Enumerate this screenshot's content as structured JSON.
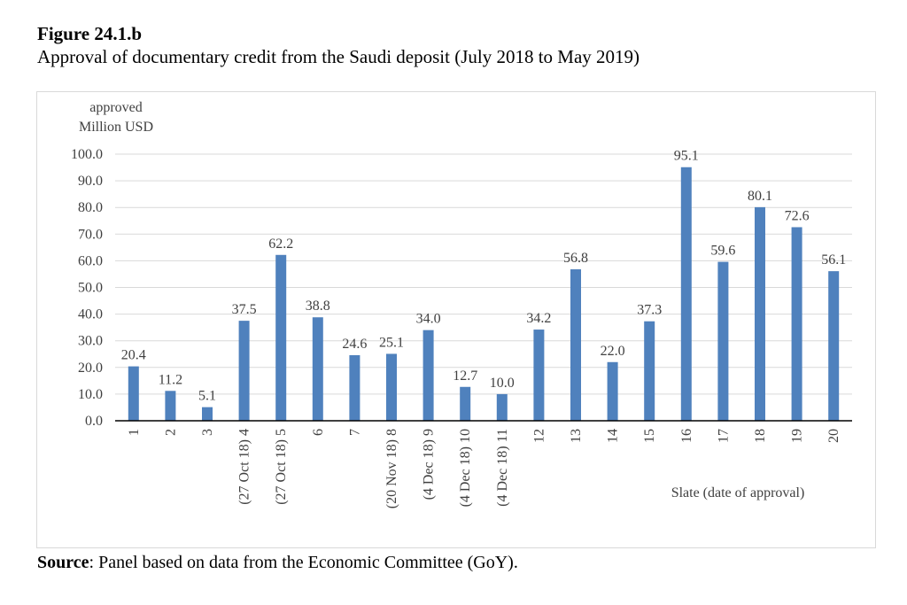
{
  "figure": {
    "label": "Figure 24.1.b",
    "title": "Approval of documentary credit from the Saudi deposit (July 2018 to May 2019)"
  },
  "source": {
    "label": "Source",
    "text": ": Panel based on data from the Economic Committee (GoY)."
  },
  "chart_data": {
    "type": "bar",
    "title": "",
    "ylabel_lines": [
      "approved",
      "Million USD"
    ],
    "xlabel": "Slate (date of approval)",
    "ylim": [
      0,
      100
    ],
    "ytick_step": 10,
    "yticks": [
      "0.0",
      "10.0",
      "20.0",
      "30.0",
      "40.0",
      "50.0",
      "60.0",
      "70.0",
      "80.0",
      "90.0",
      "100.0"
    ],
    "grid": true,
    "bar_color": "#4f81bd",
    "categories": [
      "1",
      "2",
      "3",
      "(27 Oct 18) 4",
      "(27 Oct 18) 5",
      "6",
      "7",
      "(20 Nov 18) 8",
      "(4 Dec 18) 9",
      "(4 Dec 18) 10",
      "(4 Dec 18) 11",
      "12",
      "13",
      "14",
      "15",
      "16",
      "17",
      "18",
      "19",
      "20"
    ],
    "values": [
      20.4,
      11.2,
      5.1,
      37.5,
      62.2,
      38.8,
      24.6,
      25.1,
      34.0,
      12.7,
      10.0,
      34.2,
      56.8,
      22.0,
      37.3,
      95.1,
      59.6,
      80.1,
      72.6,
      56.1
    ],
    "data_labels": [
      "20.4",
      "11.2",
      "5.1",
      "37.5",
      "62.2",
      "38.8",
      "24.6",
      "25.1",
      "34.0",
      "12.7",
      "10.0",
      "34.2",
      "56.8",
      "22.0",
      "37.3",
      "95.1",
      "59.6",
      "80.1",
      "72.6",
      "56.1"
    ]
  }
}
